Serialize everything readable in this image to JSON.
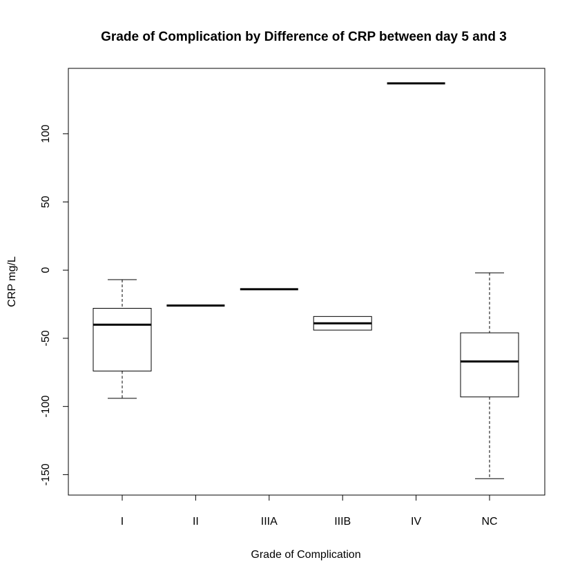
{
  "chart_data": {
    "type": "boxplot",
    "title": "Grade of Complication by Difference of CRP between day 5 and 3",
    "xlabel": "Grade of Complication",
    "ylabel": "CRP mg/L",
    "ylim": [
      -165,
      148
    ],
    "yticks": [
      -150,
      -100,
      -50,
      0,
      50,
      100
    ],
    "y_tick_labels": [
      "-150",
      "-100",
      "-50",
      "0",
      "50",
      "100"
    ],
    "categories": [
      "I",
      "II",
      "IIIA",
      "IIIB",
      "IV",
      "NC"
    ],
    "boxes": [
      {
        "name": "I",
        "whisker_low": -94,
        "q1": -74,
        "median": -40,
        "q3": -28,
        "whisker_high": -7
      },
      {
        "name": "II",
        "whisker_low": -26,
        "q1": -26,
        "median": -26,
        "q3": -26,
        "whisker_high": -26
      },
      {
        "name": "IIIA",
        "whisker_low": -14,
        "q1": -14,
        "median": -14,
        "q3": -14,
        "whisker_high": -14
      },
      {
        "name": "IIIB",
        "whisker_low": -44,
        "q1": -44,
        "median": -39,
        "q3": -34,
        "whisker_high": -34
      },
      {
        "name": "IV",
        "whisker_low": 137,
        "q1": 137,
        "median": 137,
        "q3": 137,
        "whisker_high": 137
      },
      {
        "name": "NC",
        "whisker_low": -153,
        "q1": -93,
        "median": -67,
        "q3": -46,
        "whisker_high": -2
      }
    ],
    "grid": false,
    "legend": "none",
    "colors": {
      "box_fill": "#ffffff",
      "stroke": "#000000"
    }
  }
}
